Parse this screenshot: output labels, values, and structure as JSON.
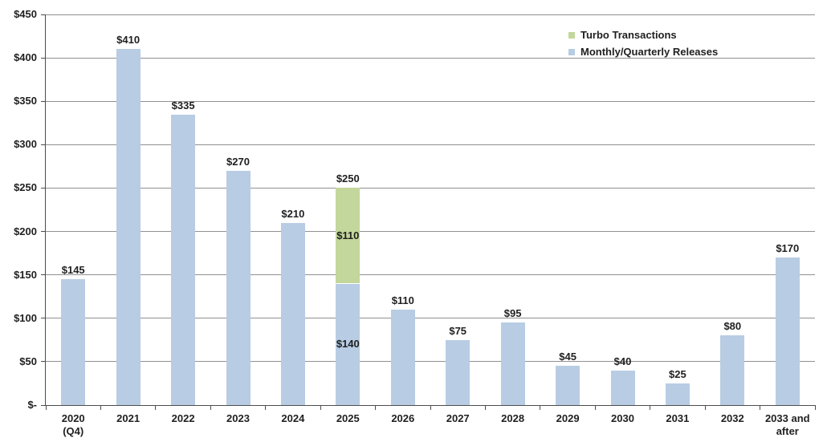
{
  "chart_data": {
    "type": "bar",
    "stacked": true,
    "title": "",
    "xlabel": "",
    "ylabel": "",
    "categories": [
      "2020\n(Q4)",
      "2021",
      "2022",
      "2023",
      "2024",
      "2025",
      "2026",
      "2027",
      "2028",
      "2029",
      "2030",
      "2031",
      "2032",
      "2033 and\nafter"
    ],
    "series": [
      {
        "name": "Monthly/Quarterly Releases",
        "color": "#b8cce4",
        "values": [
          145,
          410,
          335,
          270,
          210,
          140,
          110,
          75,
          95,
          45,
          40,
          25,
          80,
          170
        ]
      },
      {
        "name": "Turbo Transactions",
        "color": "#c3d69b",
        "values": [
          0,
          0,
          0,
          0,
          0,
          110,
          0,
          0,
          0,
          0,
          0,
          0,
          0,
          0
        ]
      }
    ],
    "bar_labels": [
      "$145",
      "$410",
      "$335",
      "$270",
      "$210",
      "$250",
      "$110",
      "$75",
      "$95",
      "$45",
      "$40",
      "$25",
      "$80",
      "$170"
    ],
    "segment_labels": [
      {
        "category_index": 5,
        "series_name": "Turbo Transactions",
        "text": "$110"
      },
      {
        "category_index": 5,
        "series_name": "Monthly/Quarterly Releases",
        "text": "$140"
      }
    ],
    "y_axis": {
      "min": 0,
      "max": 450,
      "step": 50,
      "tick_labels": [
        "$-",
        "$50",
        "$100",
        "$150",
        "$200",
        "$250",
        "$300",
        "$350",
        "$400",
        "$450"
      ]
    },
    "legend": {
      "position": "top-right",
      "items": [
        {
          "label": "Turbo Transactions",
          "color": "#c3d69b"
        },
        {
          "label": "Monthly/Quarterly Releases",
          "color": "#b8cce4"
        }
      ]
    },
    "grid": true,
    "colors": {
      "gridline": "#909090",
      "axis": "#4d4d4d",
      "label_text": "#1f1f1f",
      "background": "#ffffff"
    }
  }
}
